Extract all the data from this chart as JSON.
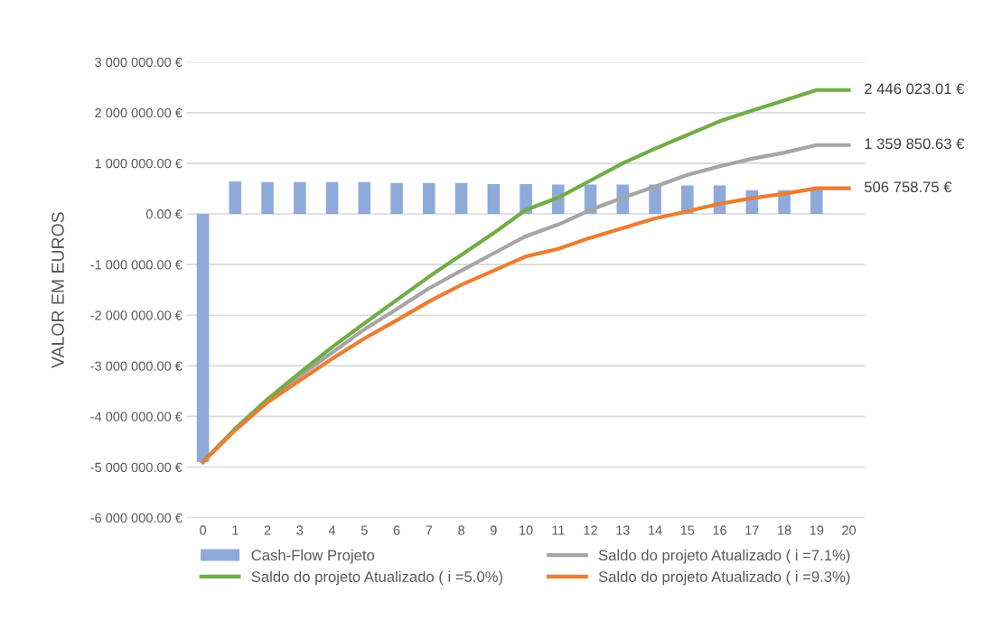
{
  "chart_data": {
    "type": "bar",
    "ylabel": "VALOR EM EUROS",
    "categories": [
      "0",
      "1",
      "2",
      "3",
      "4",
      "5",
      "6",
      "7",
      "8",
      "9",
      "10",
      "11",
      "12",
      "13",
      "14",
      "15",
      "16",
      "17",
      "18",
      "19",
      "20"
    ],
    "series": [
      {
        "name": "Cash-Flow Projeto",
        "color": "#8eaadb",
        "values": [
          -4900000,
          640000,
          630000,
          630000,
          630000,
          630000,
          610000,
          610000,
          610000,
          590000,
          590000,
          580000,
          580000,
          580000,
          580000,
          560000,
          560000,
          470000,
          470000,
          490000,
          null
        ]
      },
      {
        "name": "Saldo do projeto Atualizado ( i =7.1%)",
        "type": "line",
        "color": "#a5a5a5",
        "values": [
          -4900000,
          -4250000,
          -3690000,
          -3200000,
          -2740000,
          -2280000,
          -1880000,
          -1470000,
          -1120000,
          -780000,
          -440000,
          -210000,
          80000,
          320000,
          540000,
          770000,
          940000,
          1090000,
          1210000,
          1359850.63,
          1359850.63
        ],
        "value_labels": [
          null,
          null,
          null,
          null,
          null,
          null,
          null,
          null,
          null,
          null,
          null,
          null,
          null,
          null,
          null,
          null,
          null,
          null,
          null,
          null,
          "1 359 850.63 €"
        ]
      },
      {
        "name": "Saldo do projeto Atualizado ( i =5.0%)",
        "type": "line",
        "color": "#70ad47",
        "values": [
          -4900000,
          -4240000,
          -3660000,
          -3140000,
          -2630000,
          -2160000,
          -1700000,
          -1240000,
          -810000,
          -380000,
          80000,
          320000,
          660000,
          1000000,
          1290000,
          1560000,
          1830000,
          2040000,
          2240000,
          2446023.01,
          2446023.01
        ],
        "value_labels": [
          null,
          null,
          null,
          null,
          null,
          null,
          null,
          null,
          null,
          null,
          null,
          null,
          null,
          null,
          null,
          null,
          null,
          null,
          null,
          null,
          "2 446 023.01 €"
        ]
      },
      {
        "name": "Saldo do projeto Atualizado ( i =9.3%)",
        "type": "line",
        "color": "#ed7d31",
        "values": [
          -4900000,
          -4270000,
          -3720000,
          -3290000,
          -2860000,
          -2460000,
          -2100000,
          -1730000,
          -1400000,
          -1120000,
          -840000,
          -690000,
          -470000,
          -280000,
          -90000,
          50000,
          200000,
          310000,
          400000,
          506758.75,
          506758.75
        ],
        "value_labels": [
          null,
          null,
          null,
          null,
          null,
          null,
          null,
          null,
          null,
          null,
          null,
          null,
          null,
          null,
          null,
          null,
          null,
          null,
          null,
          null,
          "506 758.75 €"
        ]
      }
    ],
    "ylim": [
      -6000000,
      3000000
    ],
    "yticks": [
      {
        "value": -6000000,
        "label": "-6 000 000.00 €"
      },
      {
        "value": -5000000,
        "label": "-5 000 000.00 €"
      },
      {
        "value": -4000000,
        "label": "-4 000 000.00 €"
      },
      {
        "value": -3000000,
        "label": "-3 000 000.00 €"
      },
      {
        "value": -2000000,
        "label": "-2 000 000.00 €"
      },
      {
        "value": -1000000,
        "label": "-1 000 000.00 €"
      },
      {
        "value": 0,
        "label": "0.00 €"
      },
      {
        "value": 1000000,
        "label": "1 000 000.00 €"
      },
      {
        "value": 2000000,
        "label": "2 000 000.00 €"
      },
      {
        "value": 3000000,
        "label": "3 000 000.00 €"
      }
    ],
    "grid": "y",
    "legend": "bottom",
    "line_style": "solid",
    "marker": "none"
  }
}
